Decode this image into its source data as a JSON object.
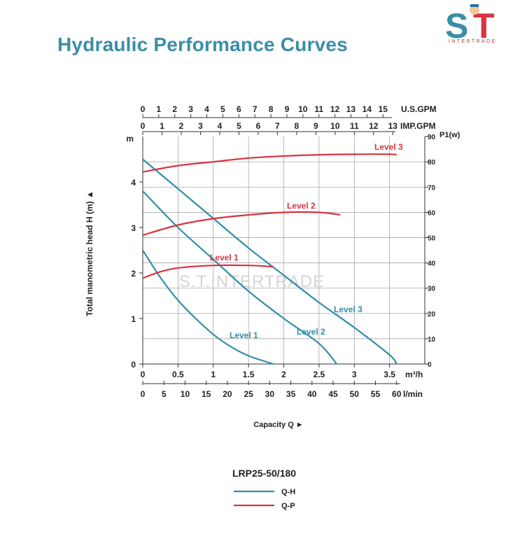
{
  "page": {
    "title": "Hydraulic Performance Curves",
    "brand": {
      "mark": "S.T",
      "name": "INTERTRADE",
      "watermark": "S.T.INTERTRADE"
    }
  },
  "chart_data": {
    "type": "line",
    "model": "LRP25-50/180",
    "xlabel": "Capacity Q ►",
    "ylabel": "Total manometric head H (m) ▲",
    "yunit": "m",
    "y2unit": "P1(w)",
    "grid": true,
    "legend_position": "bottom",
    "x_m3h": {
      "unit": "m³/h",
      "ticks": [
        0,
        0.5,
        1,
        1.5,
        2,
        2.5,
        3,
        3.5
      ],
      "range": [
        0,
        4.0
      ]
    },
    "x_lmin": {
      "unit": "l/min",
      "ticks": [
        0,
        5,
        10,
        15,
        20,
        25,
        30,
        35,
        40,
        45,
        50,
        55,
        60
      ]
    },
    "x_usgpm": {
      "unit": "U.S.GPM",
      "ticks": [
        0,
        1,
        2,
        3,
        4,
        5,
        6,
        7,
        8,
        9,
        10,
        11,
        12,
        13,
        14,
        15
      ]
    },
    "x_impgpm": {
      "unit": "IMP.GPM",
      "ticks": [
        0,
        1,
        2,
        3,
        4,
        5,
        6,
        7,
        8,
        9,
        10,
        11,
        12,
        13
      ]
    },
    "y_head": {
      "ticks": [
        0,
        1,
        2,
        3,
        4
      ],
      "range": [
        0,
        5
      ]
    },
    "y_power": {
      "ticks": [
        0,
        10,
        20,
        30,
        40,
        50,
        60,
        70,
        80,
        90
      ],
      "range": [
        0,
        90
      ]
    },
    "legend": [
      {
        "label": "Q-H",
        "color": "#2f8fa8"
      },
      {
        "label": "Q-P",
        "color": "#d8343f"
      }
    ],
    "series": [
      {
        "name": "Level 1",
        "kind": "Q-H",
        "color": "#2f8fa8",
        "points": [
          [
            0,
            2.5
          ],
          [
            0.25,
            1.9
          ],
          [
            0.5,
            1.4
          ],
          [
            0.75,
            1.0
          ],
          [
            1.0,
            0.65
          ],
          [
            1.25,
            0.38
          ],
          [
            1.5,
            0.18
          ],
          [
            1.75,
            0.05
          ],
          [
            1.85,
            0.0
          ]
        ]
      },
      {
        "name": "Level 2",
        "kind": "Q-H",
        "color": "#2f8fa8",
        "points": [
          [
            0,
            3.8
          ],
          [
            0.5,
            3.0
          ],
          [
            1.0,
            2.3
          ],
          [
            1.5,
            1.6
          ],
          [
            2.0,
            1.0
          ],
          [
            2.5,
            0.45
          ],
          [
            2.75,
            0.0
          ]
        ]
      },
      {
        "name": "Level 3",
        "kind": "Q-H",
        "color": "#2f8fa8",
        "points": [
          [
            0,
            4.5
          ],
          [
            0.5,
            3.85
          ],
          [
            1.0,
            3.2
          ],
          [
            1.5,
            2.55
          ],
          [
            2.0,
            1.95
          ],
          [
            2.5,
            1.35
          ],
          [
            3.0,
            0.8
          ],
          [
            3.5,
            0.2
          ],
          [
            3.6,
            0.0
          ]
        ]
      },
      {
        "name": "Level 1",
        "kind": "Q-P",
        "color": "#d8343f",
        "points": [
          [
            0,
            34
          ],
          [
            0.25,
            36.5
          ],
          [
            0.5,
            38
          ],
          [
            1.0,
            39
          ],
          [
            1.5,
            39
          ],
          [
            1.85,
            38.5
          ]
        ]
      },
      {
        "name": "Level 2",
        "kind": "Q-P",
        "color": "#d8343f",
        "points": [
          [
            0,
            51
          ],
          [
            0.5,
            55
          ],
          [
            1.0,
            57.5
          ],
          [
            1.5,
            59
          ],
          [
            2.0,
            60
          ],
          [
            2.5,
            60
          ],
          [
            2.8,
            59
          ]
        ]
      },
      {
        "name": "Level 3",
        "kind": "Q-P",
        "color": "#d8343f",
        "points": [
          [
            0,
            76
          ],
          [
            0.5,
            78.5
          ],
          [
            1.0,
            80
          ],
          [
            1.5,
            81.5
          ],
          [
            2.0,
            82.3
          ],
          [
            2.5,
            82.8
          ],
          [
            3.0,
            83
          ],
          [
            3.5,
            83
          ],
          [
            3.6,
            82.8
          ]
        ]
      }
    ]
  }
}
